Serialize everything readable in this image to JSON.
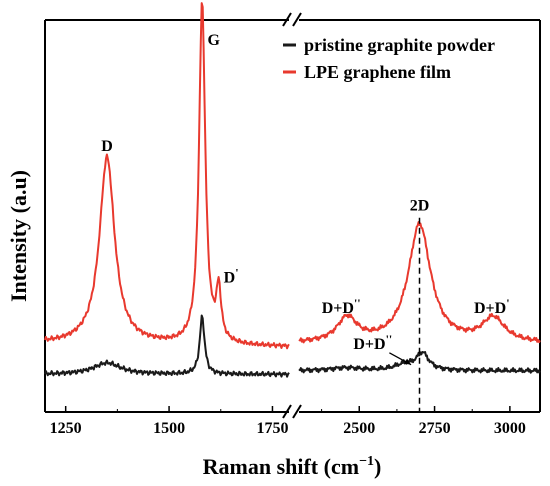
{
  "chart_data": {
    "type": "line",
    "xlabel": "Raman shift (cm",
    "xlabel_sup": "−1",
    "xlabel_tail": ")",
    "ylabel": "Intensity (a.u)",
    "x_axis_broken": true,
    "segments": [
      {
        "xlim": [
          1200,
          1790
        ],
        "ticks": [
          "1250",
          "1500",
          "1750"
        ],
        "tick_values": [
          1250,
          1500,
          1750
        ]
      },
      {
        "xlim": [
          2300,
          3100
        ],
        "ticks": [
          "2500",
          "2750",
          "3000"
        ],
        "tick_values": [
          2500,
          2750,
          3000
        ]
      }
    ],
    "ylim": [
      0,
      1
    ],
    "grid": false,
    "legend_position": "top-right",
    "series": [
      {
        "name": "pristine graphite powder",
        "color": "#1a1a1a",
        "peaks": [
          {
            "x": 1350,
            "height": 0.032,
            "width": 40
          },
          {
            "x": 1580,
            "height": 0.16,
            "width": 7
          },
          {
            "x": 2455,
            "height": 0.008,
            "width": 60
          },
          {
            "x": 2650,
            "height": 0.016,
            "width": 40
          },
          {
            "x": 2710,
            "height": 0.047,
            "width": 25
          }
        ],
        "baseline": [
          {
            "x": 1200,
            "y": 0.085
          },
          {
            "x": 1790,
            "y": 0.085
          },
          {
            "x": 2300,
            "y": 0.095
          },
          {
            "x": 3100,
            "y": 0.095
          }
        ]
      },
      {
        "name": "LPE graphene film",
        "color": "#e8392e",
        "peaks": [
          {
            "x": 1350,
            "height": 0.52,
            "width": 22
          },
          {
            "x": 1580,
            "height": 0.95,
            "width": 9
          },
          {
            "x": 1620,
            "height": 0.14,
            "width": 7
          },
          {
            "x": 2460,
            "height": 0.068,
            "width": 40
          },
          {
            "x": 2700,
            "height": 0.33,
            "width": 45
          },
          {
            "x": 2945,
            "height": 0.067,
            "width": 45
          }
        ],
        "baseline": [
          {
            "x": 1200,
            "y": 0.17
          },
          {
            "x": 1790,
            "y": 0.16
          },
          {
            "x": 2300,
            "y": 0.17
          },
          {
            "x": 3100,
            "y": 0.17
          }
        ]
      }
    ],
    "annotations": [
      {
        "text": "D",
        "x": 1350,
        "y": 0.705
      },
      {
        "text": "G",
        "x": 1608,
        "y": 1.0
      },
      {
        "text": "D'",
        "x": 1650,
        "y": 0.34
      },
      {
        "text": "D+D''",
        "x": 2440,
        "y": 0.255
      },
      {
        "text": "2D",
        "x": 2700,
        "y": 0.54
      },
      {
        "text": "D+D'",
        "x": 2940,
        "y": 0.255
      },
      {
        "text": "D+D''",
        "x": 2545,
        "y": 0.155
      }
    ],
    "dashed_marker_x": 2700
  }
}
